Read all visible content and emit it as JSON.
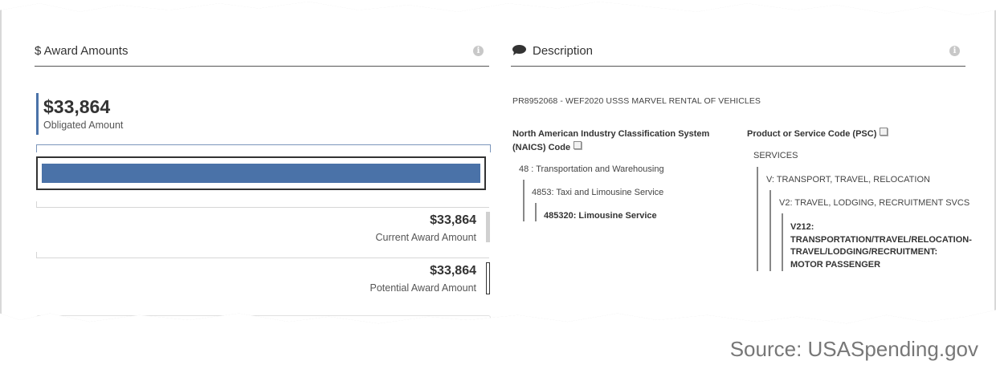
{
  "award_amounts": {
    "title": "$ Award Amounts",
    "obligated_amount": "$33,864",
    "obligated_label": "Obligated Amount",
    "obligated_fraction": 1.0,
    "current_amount": "$33,864",
    "current_label": "Current Award Amount",
    "potential_amount": "$33,864",
    "potential_label": "Potential Award Amount",
    "bar_color": "#4a72a8"
  },
  "description": {
    "title": "Description",
    "text": "PR8952068 - WEF2020 USSS MARVEL RENTAL OF VEHICLES",
    "naics": {
      "heading_line1": "North American Industry Classification System",
      "heading_line2": "(NAICS) Code",
      "levels": [
        "48 : Transportation and Warehousing",
        "4853: Taxi and Limousine Service",
        "485320: Limousine Service"
      ]
    },
    "psc": {
      "heading": "Product or Service Code (PSC)",
      "levels": [
        "SERVICES",
        "V: TRANSPORT, TRAVEL, RELOCATION",
        "V2: TRAVEL, LODGING, RECRUITMENT SVCS"
      ],
      "final_lines": [
        "V212:",
        "TRANSPORTATION/TRAVEL/RELOCATION-",
        "TRAVEL/LODGING/RECRUITMENT:",
        "MOTOR PASSENGER"
      ]
    }
  },
  "icons": {
    "info": "info-icon",
    "speech": "speech-bubble-icon",
    "book": "book-icon"
  },
  "source_caption": "Source: USASpending.gov"
}
